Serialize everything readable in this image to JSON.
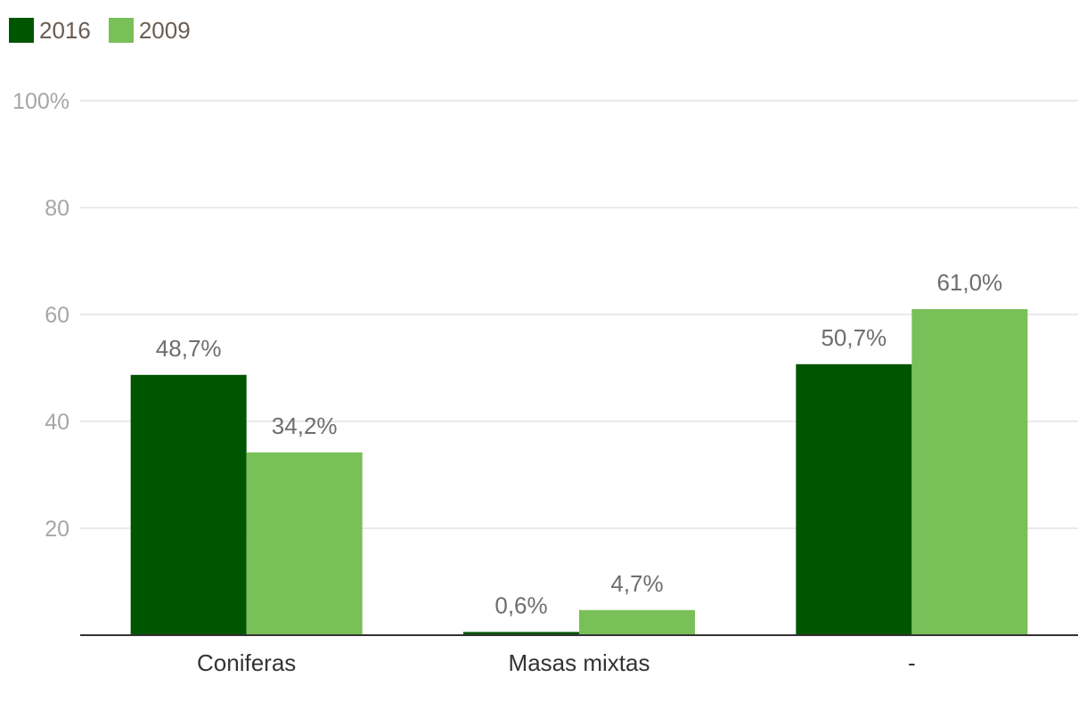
{
  "legend": {
    "items": [
      {
        "label": "2016",
        "color": "#005500"
      },
      {
        "label": "2009",
        "color": "#78c057"
      }
    ]
  },
  "chart_data": {
    "type": "bar",
    "categories": [
      "Coniferas",
      "Masas mixtas",
      "-"
    ],
    "series": [
      {
        "name": "2016",
        "values": [
          48.7,
          0.6,
          50.7
        ],
        "labels": [
          "48,7%",
          "0,6%",
          "50,7%"
        ],
        "color": "#005500"
      },
      {
        "name": "2009",
        "values": [
          34.2,
          4.7,
          61.0
        ],
        "labels": [
          "34,2%",
          "4,7%",
          "61,0%"
        ],
        "color": "#78c057"
      }
    ],
    "ylim": [
      0,
      100
    ],
    "yticks": [
      20,
      40,
      60,
      80,
      100
    ],
    "ytick_labels": [
      "20",
      "40",
      "60",
      "80",
      "100%"
    ],
    "grid": true,
    "legend_position": "top-left"
  }
}
